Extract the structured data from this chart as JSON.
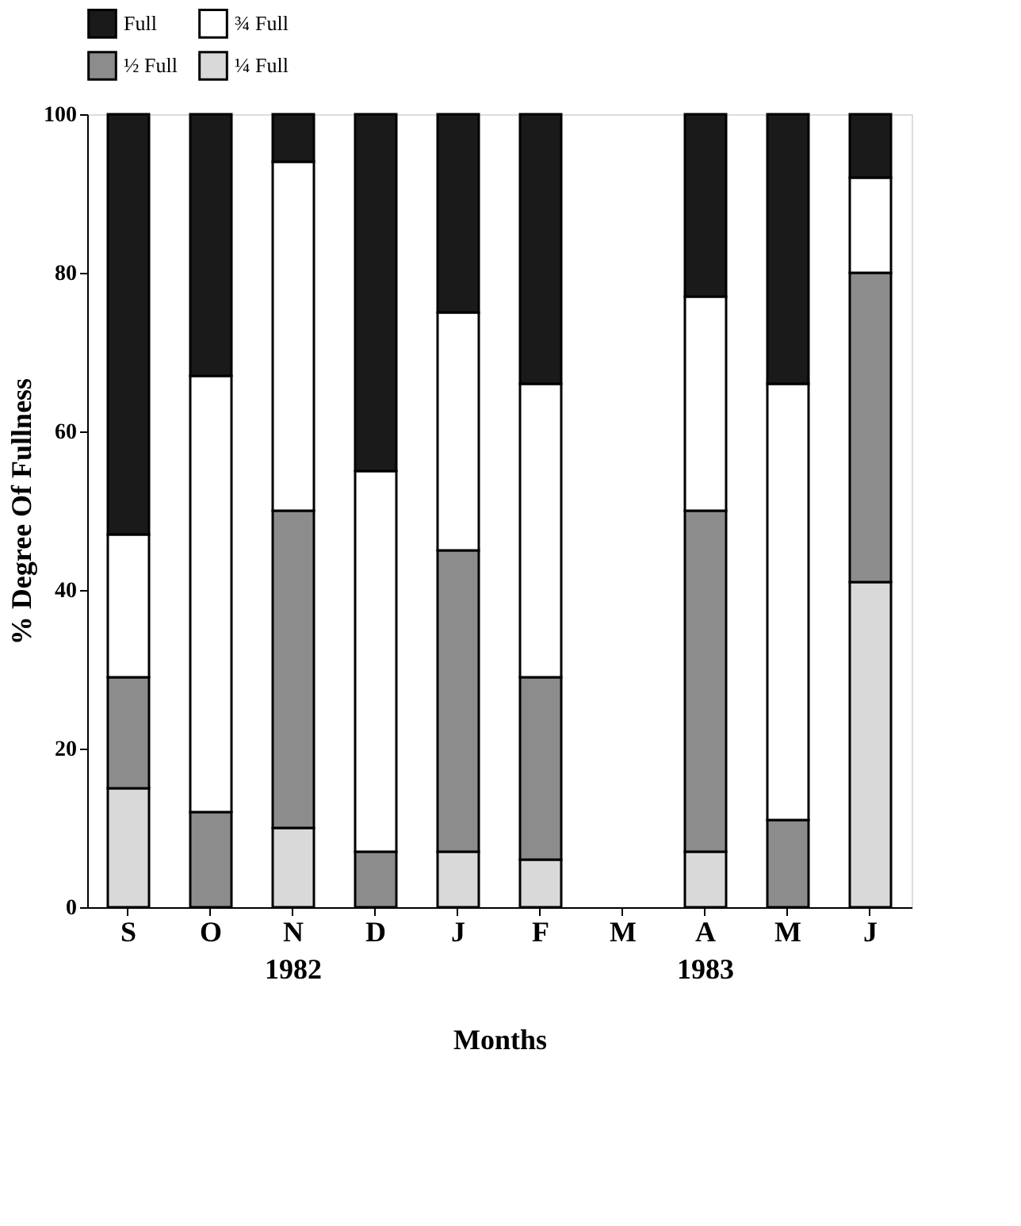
{
  "chart_data": {
    "type": "bar",
    "stacked": true,
    "categories": [
      "S",
      "O",
      "N",
      "D",
      "J",
      "F",
      "M",
      "A",
      "M",
      "J"
    ],
    "series": [
      {
        "name": "¼ Full",
        "color": "#d9d9d9",
        "values": [
          15,
          0,
          10,
          0,
          7,
          6,
          null,
          7,
          0,
          41
        ]
      },
      {
        "name": "½ Full",
        "color": "#8c8c8c",
        "values": [
          14,
          12,
          40,
          7,
          38,
          23,
          null,
          43,
          11,
          39
        ]
      },
      {
        "name": "¾ Full",
        "color": "#ffffff",
        "values": [
          18,
          55,
          44,
          48,
          30,
          37,
          null,
          27,
          55,
          12
        ]
      },
      {
        "name": "Full",
        "color": "#1a1a1a",
        "values": [
          53,
          33,
          6,
          45,
          25,
          34,
          null,
          23,
          34,
          8
        ]
      }
    ],
    "ylim": [
      0,
      100
    ],
    "yticks": [
      0,
      20,
      40,
      60,
      80,
      100
    ],
    "ylabel": "% Degree Of Fullness",
    "xlabel": "Months",
    "annotations": [
      "1982",
      "1983"
    ],
    "legend": "top",
    "grid": false
  }
}
